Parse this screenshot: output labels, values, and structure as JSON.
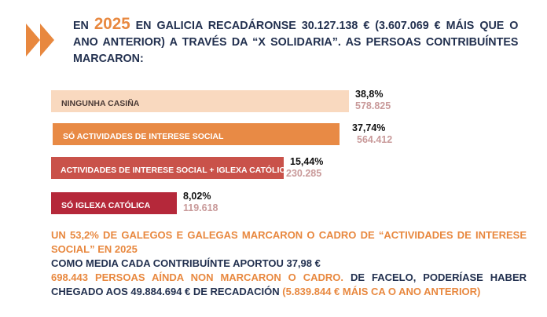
{
  "header": {
    "pre": "EN ",
    "year": "2025",
    "post": " EN GALICIA RECADÁRONSE 30.127.138 € (3.607.069 € MÁIS QUE O ANO ANTERIOR) A TRAVÉS DA  “X SOLIDARIA”.  AS PERSOAS CONTRIBUÍNTES MARCARON:"
  },
  "colors": {
    "accent": "#e8883f",
    "text": "#22304f",
    "value": "#c99a9a"
  },
  "icons": {
    "header": "double-chevron-right-icon"
  },
  "chart_data": {
    "type": "bar",
    "orientation": "horizontal",
    "categories": [
      "NINGUNHA CASIÑA",
      "SÓ ACTIVIDADES DE INTERESE SOCIAL",
      "ACTIVIDADES DE INTERESE SOCIAL + IGLEXA CATÓLICA",
      "SÓ IGLEXA CATÓLICA"
    ],
    "percent_labels": [
      "38,8%",
      "37,74%",
      "15,44%",
      "8,02%"
    ],
    "value_labels": [
      "578.825",
      "564.412",
      "230.285",
      "119.618"
    ],
    "values": [
      38.8,
      37.74,
      15.44,
      8.02
    ],
    "counts": [
      578825,
      564412,
      230285,
      119618
    ],
    "bar_colors": [
      "#f9d9bf",
      "#e88a45",
      "#c9524a",
      "#b5283a"
    ]
  },
  "footer": {
    "line1": "UN 53,2% DE GALEGOS E GALEGAS MARCARON O CADRO DE “ACTIVIDADES DE INTERESE SOCIAL” EN 2025",
    "line2": "COMO MEDIA CADA CONTRIBUÍNTE APORTOU 37,98 €",
    "line3_orange": "698.443 PERSOAS AÍNDA NON MARCARON O CADRO.",
    "line3_dark": " DE FACELO, PODERÍASE HABER CHEGADO AOS 49.884.694 € DE RECADACIÓN ",
    "line3_orange2": "(5.839.844 € MÁIS CA O ANO ANTERIOR)"
  }
}
